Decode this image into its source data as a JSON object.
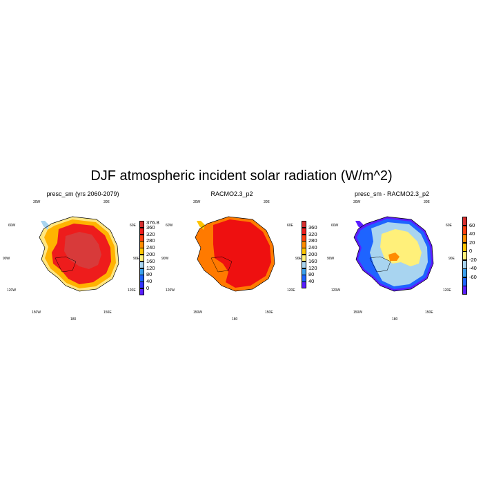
{
  "title": "DJF atmospheric incident solar radiation (W/m^2)",
  "panels": [
    {
      "title": "presc_sm (yrs 2060-2079)",
      "colorbar": {
        "labels": [
          "376.8",
          "360",
          "320",
          "280",
          "240",
          "200",
          "160",
          "120",
          "80",
          "40",
          "0"
        ],
        "colors": [
          "#d83030",
          "#ee1c1c",
          "#ff4010",
          "#ff8c00",
          "#ffc400",
          "#fff07a",
          "#a8d4f0",
          "#3aa0ee",
          "#1e64ff",
          "#3232ff",
          "#5a1eff"
        ]
      },
      "dominant_colors": {
        "interior": "#d83a3a",
        "ring": "#ee1c1c",
        "coast": "#ffb300",
        "edge": "#ffe680"
      }
    },
    {
      "title": "RACMO2.3_p2",
      "colorbar": {
        "labels": [
          "",
          "360",
          "320",
          "280",
          "240",
          "200",
          "160",
          "120",
          "80",
          "40"
        ],
        "colors": [
          "#d83030",
          "#ee1c1c",
          "#ff4010",
          "#ff8c00",
          "#ffc400",
          "#fff07a",
          "#a8d4f0",
          "#3aa0ee",
          "#1e64ff",
          "#5a1eff"
        ]
      },
      "dominant_colors": {
        "interior": "#ee1010",
        "ring": "#ee1010",
        "coast": "#ff7a00",
        "edge": "#ff7a00"
      }
    },
    {
      "title": "presc_sm - RACMO2.3_p2",
      "colorbar": {
        "labels": [
          "",
          "60",
          "40",
          "20",
          "0",
          "-20",
          "-40",
          "-60"
        ],
        "colors": [
          "#d83030",
          "#ff4010",
          "#ff8c00",
          "#ffc400",
          "#fff07a",
          "#a8d4f0",
          "#3aa0ee",
          "#1e64ff",
          "#5a1eff"
        ]
      },
      "dominant_colors": {
        "interior": "#fff07a",
        "ring": "#a8d4f0",
        "coast": "#1e64ff",
        "edge": "#5a1eff"
      }
    }
  ],
  "longitude_labels": [
    "30W",
    "30E",
    "60W",
    "60E",
    "90W",
    "90E",
    "120W",
    "120E",
    "150W",
    "150E",
    "180"
  ]
}
